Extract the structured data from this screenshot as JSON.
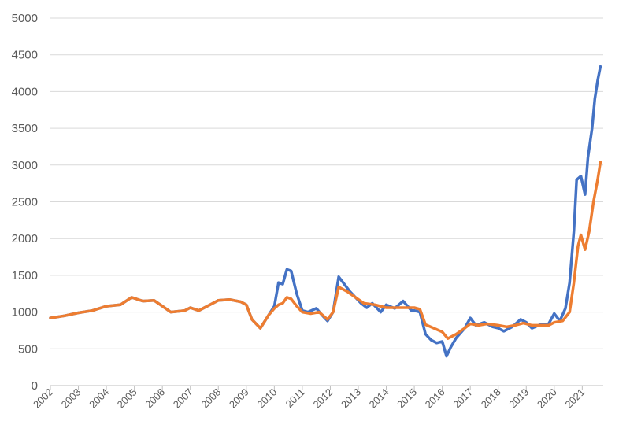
{
  "chart_data": {
    "type": "line",
    "title": "",
    "xlabel": "",
    "ylabel": "",
    "ylim": [
      0,
      5000
    ],
    "xlim": [
      2002,
      2021.75
    ],
    "y_ticks": [
      0,
      500,
      1000,
      1500,
      2000,
      2500,
      3000,
      3500,
      4000,
      4500,
      5000
    ],
    "x_tick_labels": [
      "2002",
      "2003",
      "2004",
      "2005",
      "2006",
      "2007",
      "2008",
      "2009",
      "2010",
      "2011",
      "2012",
      "2013",
      "2014",
      "2015",
      "2016",
      "2017",
      "2018",
      "2019",
      "2020",
      "2021"
    ],
    "grid": true,
    "legend": "none",
    "series": [
      {
        "color": "#4472c4",
        "points": [
          [
            2002.0,
            920
          ],
          [
            2002.5,
            950
          ],
          [
            2003.0,
            990
          ],
          [
            2003.5,
            1020
          ],
          [
            2004.0,
            1080
          ],
          [
            2004.5,
            1100
          ],
          [
            2004.9,
            1200
          ],
          [
            2005.3,
            1150
          ],
          [
            2005.7,
            1160
          ],
          [
            2006.0,
            1080
          ],
          [
            2006.3,
            1000
          ],
          [
            2006.8,
            1020
          ],
          [
            2007.0,
            1060
          ],
          [
            2007.3,
            1020
          ],
          [
            2007.7,
            1100
          ],
          [
            2008.0,
            1160
          ],
          [
            2008.4,
            1170
          ],
          [
            2008.8,
            1140
          ],
          [
            2009.0,
            1100
          ],
          [
            2009.2,
            900
          ],
          [
            2009.5,
            780
          ],
          [
            2009.8,
            960
          ],
          [
            2010.0,
            1080
          ],
          [
            2010.15,
            1400
          ],
          [
            2010.3,
            1380
          ],
          [
            2010.45,
            1580
          ],
          [
            2010.6,
            1560
          ],
          [
            2010.8,
            1250
          ],
          [
            2011.0,
            1020
          ],
          [
            2011.2,
            1000
          ],
          [
            2011.5,
            1050
          ],
          [
            2011.7,
            960
          ],
          [
            2011.9,
            880
          ],
          [
            2012.1,
            1000
          ],
          [
            2012.3,
            1480
          ],
          [
            2012.5,
            1380
          ],
          [
            2012.7,
            1280
          ],
          [
            2012.9,
            1200
          ],
          [
            2013.1,
            1120
          ],
          [
            2013.3,
            1060
          ],
          [
            2013.5,
            1120
          ],
          [
            2013.8,
            1000
          ],
          [
            2014.0,
            1100
          ],
          [
            2014.3,
            1050
          ],
          [
            2014.6,
            1150
          ],
          [
            2014.9,
            1020
          ],
          [
            2015.0,
            1020
          ],
          [
            2015.2,
            1000
          ],
          [
            2015.4,
            700
          ],
          [
            2015.6,
            620
          ],
          [
            2015.8,
            580
          ],
          [
            2016.0,
            600
          ],
          [
            2016.15,
            400
          ],
          [
            2016.3,
            520
          ],
          [
            2016.5,
            650
          ],
          [
            2016.8,
            780
          ],
          [
            2017.0,
            920
          ],
          [
            2017.2,
            820
          ],
          [
            2017.5,
            860
          ],
          [
            2017.8,
            800
          ],
          [
            2018.0,
            780
          ],
          [
            2018.2,
            740
          ],
          [
            2018.5,
            800
          ],
          [
            2018.8,
            900
          ],
          [
            2019.0,
            860
          ],
          [
            2019.2,
            780
          ],
          [
            2019.5,
            830
          ],
          [
            2019.8,
            840
          ],
          [
            2020.0,
            980
          ],
          [
            2020.2,
            880
          ],
          [
            2020.4,
            1050
          ],
          [
            2020.55,
            1400
          ],
          [
            2020.7,
            2100
          ],
          [
            2020.8,
            2800
          ],
          [
            2020.95,
            2850
          ],
          [
            2021.1,
            2600
          ],
          [
            2021.2,
            3100
          ],
          [
            2021.35,
            3500
          ],
          [
            2021.45,
            3900
          ],
          [
            2021.55,
            4150
          ],
          [
            2021.65,
            4340
          ]
        ]
      },
      {
        "color": "#ed7d31",
        "points": [
          [
            2002.0,
            920
          ],
          [
            2002.5,
            950
          ],
          [
            2003.0,
            990
          ],
          [
            2003.5,
            1020
          ],
          [
            2004.0,
            1080
          ],
          [
            2004.5,
            1100
          ],
          [
            2004.9,
            1200
          ],
          [
            2005.3,
            1150
          ],
          [
            2005.7,
            1160
          ],
          [
            2006.0,
            1080
          ],
          [
            2006.3,
            1000
          ],
          [
            2006.8,
            1020
          ],
          [
            2007.0,
            1060
          ],
          [
            2007.3,
            1020
          ],
          [
            2007.7,
            1100
          ],
          [
            2008.0,
            1160
          ],
          [
            2008.4,
            1170
          ],
          [
            2008.8,
            1140
          ],
          [
            2009.0,
            1100
          ],
          [
            2009.2,
            900
          ],
          [
            2009.5,
            780
          ],
          [
            2009.8,
            960
          ],
          [
            2010.0,
            1050
          ],
          [
            2010.15,
            1100
          ],
          [
            2010.3,
            1120
          ],
          [
            2010.45,
            1200
          ],
          [
            2010.6,
            1180
          ],
          [
            2010.8,
            1080
          ],
          [
            2011.0,
            1000
          ],
          [
            2011.3,
            980
          ],
          [
            2011.6,
            1000
          ],
          [
            2011.9,
            900
          ],
          [
            2012.1,
            1000
          ],
          [
            2012.3,
            1340
          ],
          [
            2012.6,
            1280
          ],
          [
            2012.9,
            1200
          ],
          [
            2013.2,
            1120
          ],
          [
            2013.6,
            1100
          ],
          [
            2014.0,
            1060
          ],
          [
            2014.4,
            1060
          ],
          [
            2014.8,
            1060
          ],
          [
            2015.0,
            1060
          ],
          [
            2015.2,
            1040
          ],
          [
            2015.4,
            830
          ],
          [
            2015.7,
            780
          ],
          [
            2016.0,
            730
          ],
          [
            2016.2,
            640
          ],
          [
            2016.5,
            700
          ],
          [
            2016.8,
            780
          ],
          [
            2017.0,
            840
          ],
          [
            2017.3,
            820
          ],
          [
            2017.6,
            840
          ],
          [
            2018.0,
            820
          ],
          [
            2018.3,
            800
          ],
          [
            2018.6,
            820
          ],
          [
            2018.9,
            850
          ],
          [
            2019.2,
            820
          ],
          [
            2019.5,
            820
          ],
          [
            2019.8,
            820
          ],
          [
            2020.0,
            860
          ],
          [
            2020.3,
            880
          ],
          [
            2020.55,
            1000
          ],
          [
            2020.7,
            1400
          ],
          [
            2020.85,
            1900
          ],
          [
            2020.95,
            2050
          ],
          [
            2021.1,
            1850
          ],
          [
            2021.25,
            2100
          ],
          [
            2021.4,
            2500
          ],
          [
            2021.55,
            2800
          ],
          [
            2021.65,
            3040
          ]
        ]
      }
    ]
  }
}
